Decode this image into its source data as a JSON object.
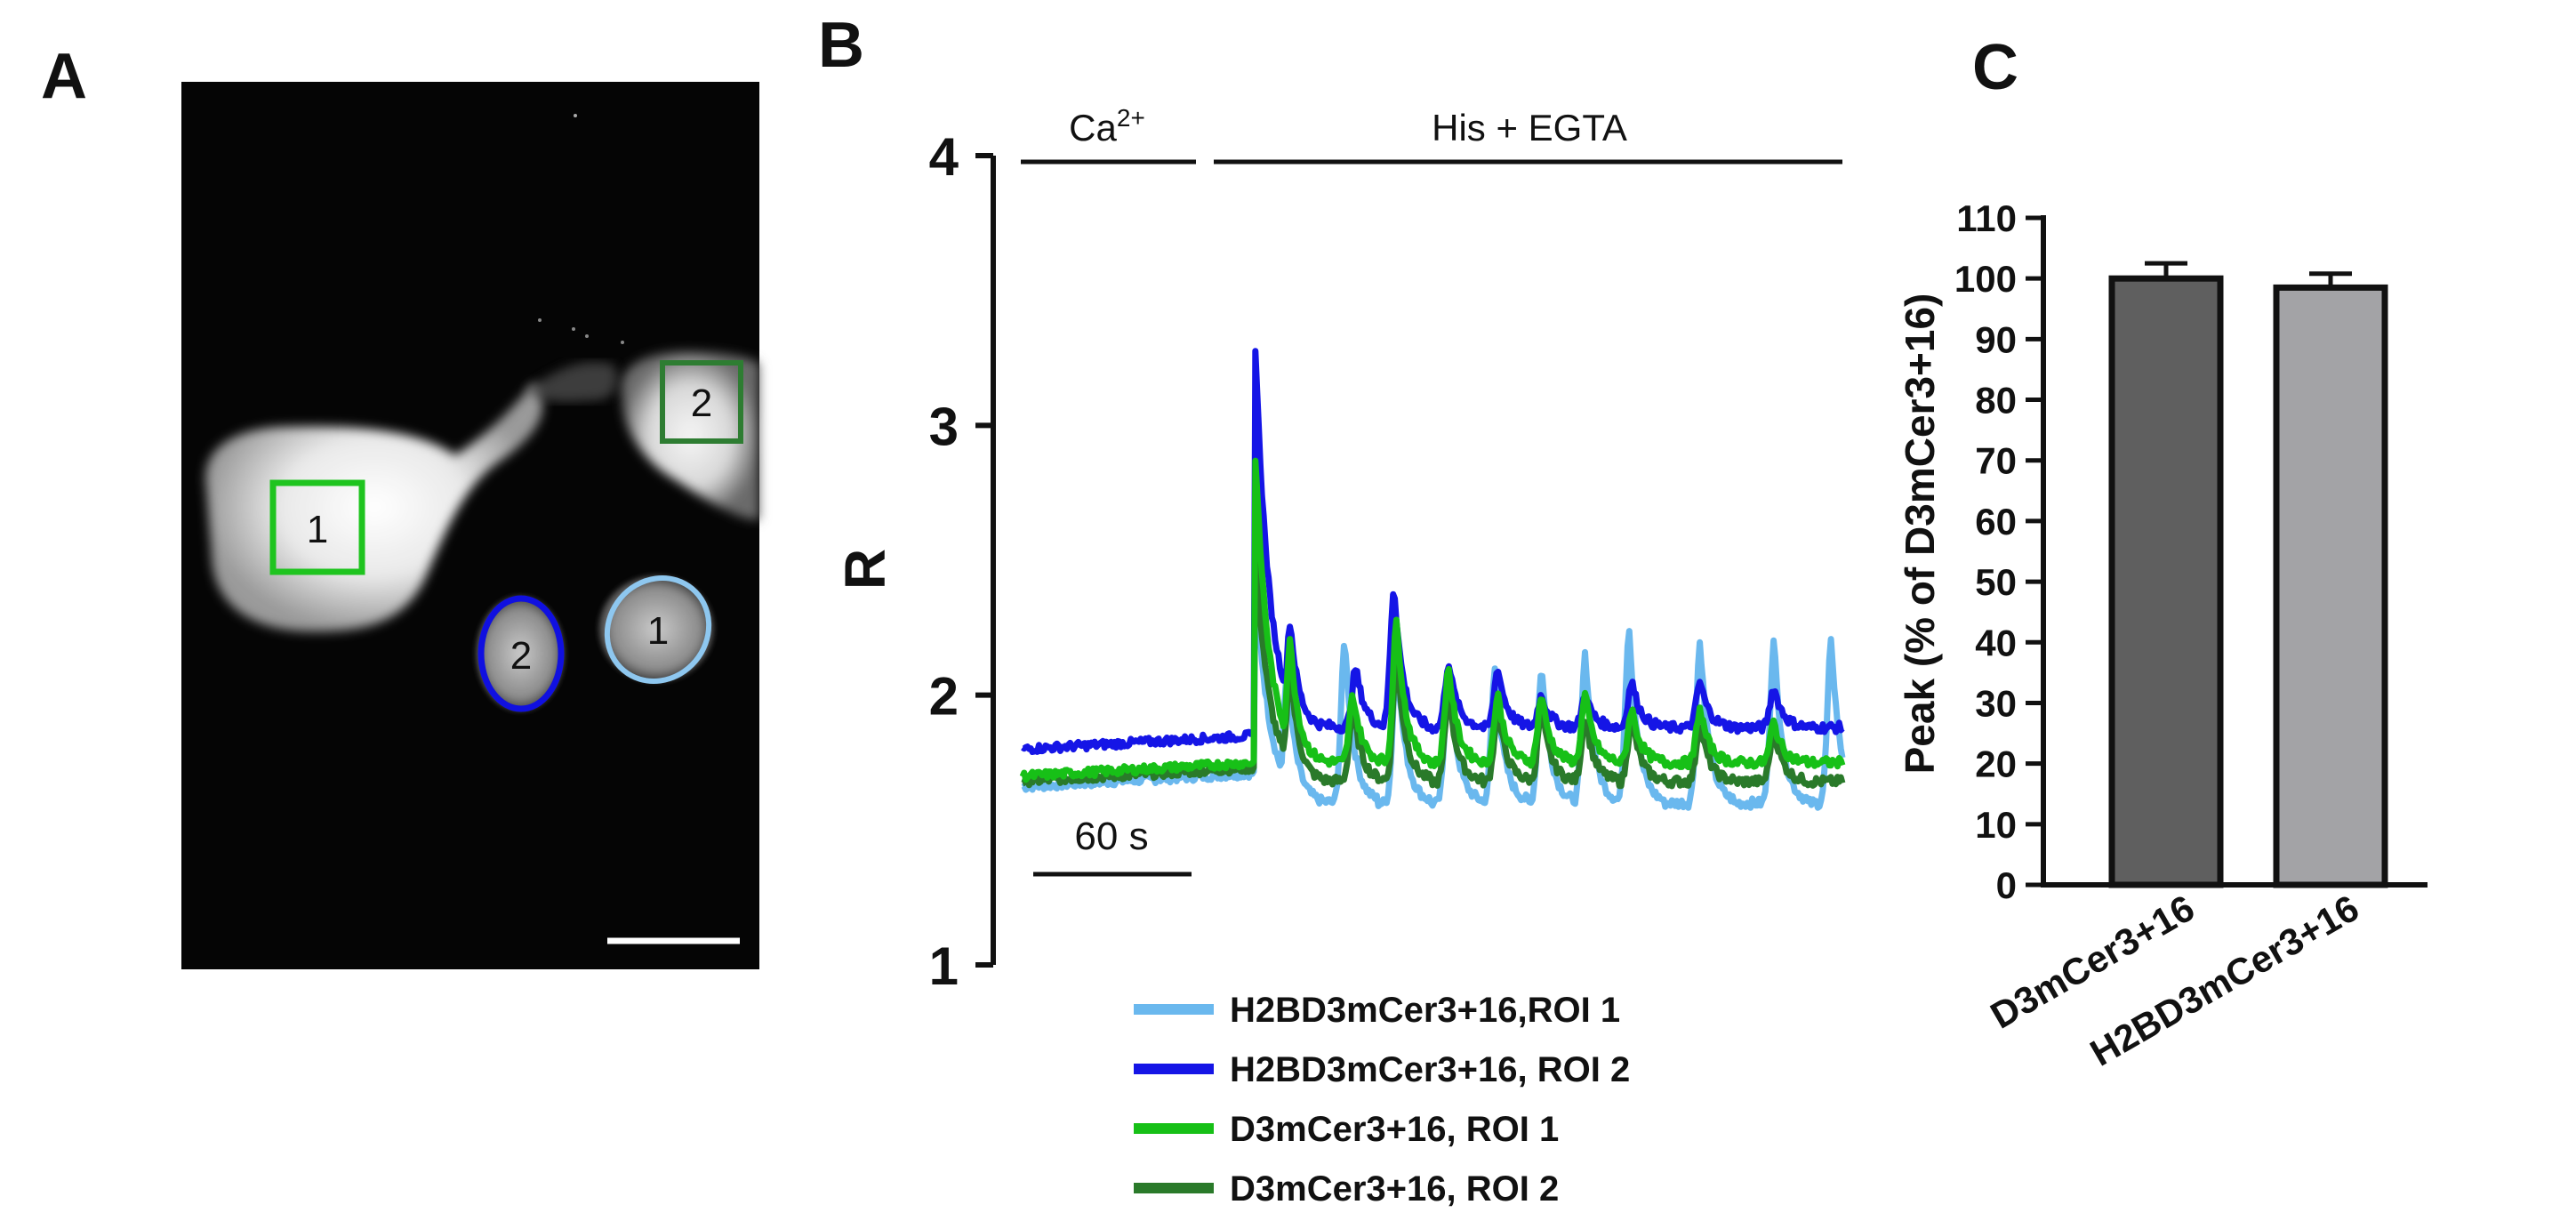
{
  "panels": {
    "a": {
      "letter": "A",
      "rois": [
        {
          "label": "1",
          "shape": "square",
          "color": "#1fc41f"
        },
        {
          "label": "2",
          "shape": "square",
          "color": "#2e7d32"
        },
        {
          "label": "2",
          "shape": "ellipse",
          "color": "#1010e0"
        },
        {
          "label": "1",
          "shape": "ellipse",
          "color": "#8ec7ef"
        }
      ]
    },
    "b": {
      "letter": "B",
      "ylabel": "R",
      "bars": [
        {
          "label": "Ca²⁺",
          "text": "Ca",
          "sup": "2+",
          "t_start": 0,
          "t_end": 70
        },
        {
          "label": "His + EGTA",
          "text": "His + EGTA",
          "sup": "",
          "t_start": 75,
          "t_end": 300
        }
      ],
      "scalebar": {
        "label": "60 s",
        "seconds": 60
      }
    },
    "c": {
      "letter": "C"
    }
  },
  "colors": {
    "roi1_light_blue": "#6ab8ee",
    "roi2_blue": "#1515e6",
    "roi1_green": "#17c017",
    "roi2_dark_green": "#2a7a2a",
    "bar_dark": "#5f5f5f",
    "bar_light": "#a3a3a6"
  },
  "chart_data": [
    {
      "type": "line",
      "xlabel": "",
      "ylabel": "R",
      "ylim": [
        1,
        4
      ],
      "yticks": [
        "1",
        "2",
        "3",
        "4"
      ],
      "xlim": [
        0,
        300
      ],
      "stimulus_time": 85,
      "series": [
        {
          "name": "H2BD3mCer3+16,ROI 1",
          "color": "#6ab8ee",
          "baseline": 1.66,
          "spike": 2.5,
          "plateau": 1.6,
          "oscillations": [
            [
              97,
              2.1
            ],
            [
              118,
              2.2
            ],
            [
              137,
              2.15
            ],
            [
              156,
              2.1
            ],
            [
              173,
              2.1
            ],
            [
              190,
              2.1
            ],
            [
              206,
              2.15
            ],
            [
              222,
              2.25
            ],
            [
              248,
              2.2
            ],
            [
              275,
              2.2
            ],
            [
              296,
              2.2
            ]
          ]
        },
        {
          "name": "H2BD3mCer3+16, ROI 2",
          "color": "#1515e6",
          "baseline": 1.8,
          "spike": 3.35,
          "plateau": 1.88,
          "oscillations": [
            [
              98,
              2.27
            ],
            [
              122,
              2.1
            ],
            [
              136,
              2.4
            ],
            [
              156,
              2.12
            ],
            [
              174,
              2.1
            ],
            [
              190,
              2.0
            ],
            [
              206,
              2.0
            ],
            [
              223,
              2.05
            ],
            [
              248,
              2.05
            ],
            [
              275,
              2.03
            ]
          ]
        },
        {
          "name": "D3mCer3+16, ROI 1",
          "color": "#17c017",
          "baseline": 1.7,
          "spike": 2.93,
          "plateau": 1.75,
          "oscillations": [
            [
              98,
              2.2
            ],
            [
              121,
              2.0
            ],
            [
              137,
              2.28
            ],
            [
              156,
              2.1
            ],
            [
              174,
              2.0
            ],
            [
              190,
              2.0
            ],
            [
              206,
              2.0
            ],
            [
              223,
              1.95
            ],
            [
              248,
              1.95
            ],
            [
              275,
              1.9
            ]
          ]
        },
        {
          "name": "D3mCer3+16, ROI 2",
          "color": "#2a7a2a",
          "baseline": 1.68,
          "spike": 2.6,
          "plateau": 1.68,
          "oscillations": [
            [
              98,
              2.1
            ],
            [
              121,
              1.95
            ],
            [
              137,
              2.15
            ],
            [
              156,
              2.0
            ],
            [
              174,
              1.95
            ],
            [
              190,
              1.95
            ],
            [
              206,
              1.92
            ],
            [
              223,
              1.92
            ],
            [
              248,
              1.9
            ],
            [
              275,
              1.88
            ]
          ]
        }
      ]
    },
    {
      "type": "bar",
      "title": "",
      "xlabel": "",
      "ylabel": "Peak (% of D3mCer3+16)",
      "ylim": [
        0,
        110
      ],
      "yticks": [
        "0",
        "10",
        "20",
        "30",
        "40",
        "50",
        "60",
        "70",
        "80",
        "90",
        "100",
        "110"
      ],
      "categories": [
        "D3mCer3+16",
        "H2BD3mCer3+16"
      ],
      "values": [
        100,
        98.5
      ],
      "errors": [
        2.5,
        2.3
      ],
      "colors": [
        "#5f5f5f",
        "#a3a3a6"
      ]
    }
  ]
}
